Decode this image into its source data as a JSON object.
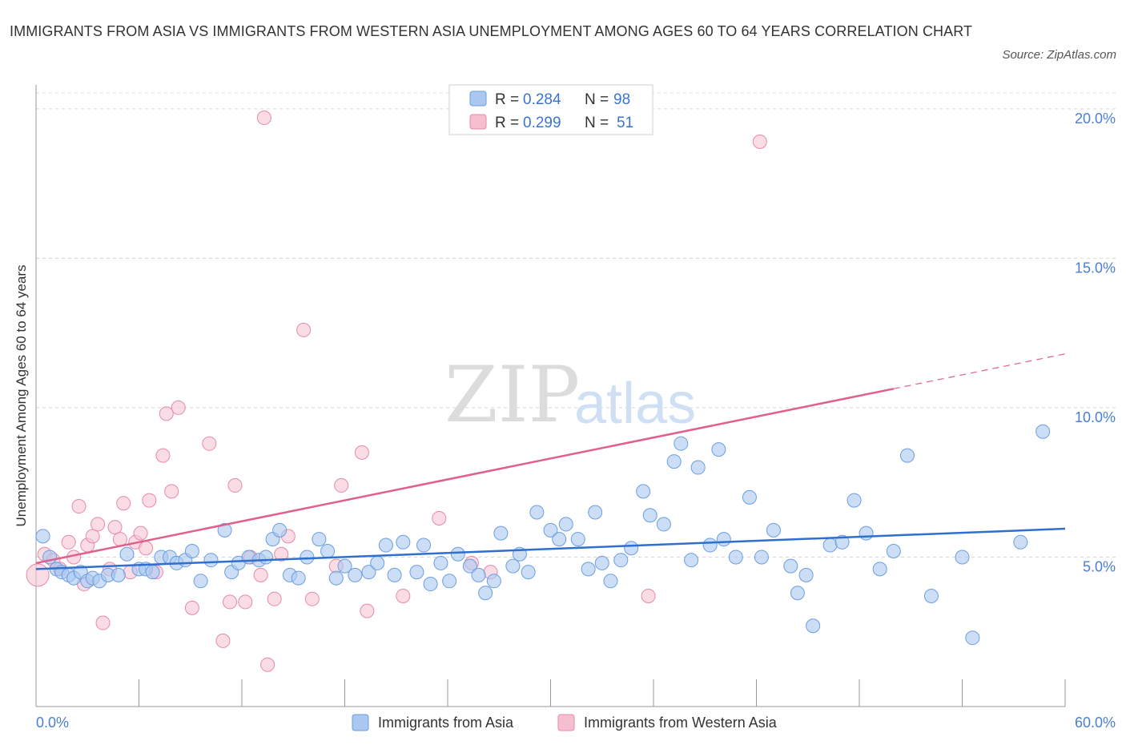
{
  "header": {
    "title": "IMMIGRANTS FROM ASIA VS IMMIGRANTS FROM WESTERN ASIA UNEMPLOYMENT AMONG AGES 60 TO 64 YEARS CORRELATION CHART",
    "source": "Source: ZipAtlas.com"
  },
  "watermark": {
    "zip": "ZIP",
    "atlas": "atlas"
  },
  "legend": {
    "rows": [
      {
        "r_label": "R = ",
        "r_value": "0.284",
        "n_label": "N = ",
        "n_value": "98",
        "color": "#aac8f0"
      },
      {
        "r_label": "R = ",
        "r_value": "0.299",
        "n_label": "N = ",
        "n_value": "51",
        "color": "#f6bfd0"
      }
    ]
  },
  "colors": {
    "asia_fill": "#a8c8f0",
    "asia_stroke": "#6b9ee0",
    "asia_line": "#2f6fce",
    "west_fill": "#f7c4d4",
    "west_stroke": "#e68aa8",
    "west_line": "#e0608c",
    "grid": "#d8d8d8"
  },
  "chart_data": {
    "type": "scatter",
    "title": "IMMIGRANTS FROM ASIA VS IMMIGRANTS FROM WESTERN ASIA UNEMPLOYMENT AMONG AGES 60 TO 64 YEARS CORRELATION CHART",
    "xlabel": "",
    "ylabel": "Unemployment Among Ages 60 to 64 years",
    "xlim": [
      0,
      60
    ],
    "ylim": [
      0,
      20.8
    ],
    "x_tick_labels": [
      "0.0%",
      "60.0%"
    ],
    "y_ticks": [
      5,
      10,
      15,
      20
    ],
    "y_tick_labels": [
      "5.0%",
      "10.0%",
      "15.0%",
      "20.0%"
    ],
    "grid": true,
    "legend_position": "top-center",
    "series": [
      {
        "name": "Immigrants from Asia",
        "R": 0.284,
        "N": 98,
        "trend": {
          "x": [
            0,
            60
          ],
          "y": [
            4.6,
            5.95
          ],
          "dashed_from": null
        },
        "points": [
          [
            0.4,
            5.7
          ],
          [
            0.8,
            5.0
          ],
          [
            1.2,
            4.6
          ],
          [
            1.5,
            4.5
          ],
          [
            1.9,
            4.4
          ],
          [
            2.2,
            4.3
          ],
          [
            2.6,
            4.5
          ],
          [
            3.0,
            4.2
          ],
          [
            3.3,
            4.3
          ],
          [
            3.7,
            4.2
          ],
          [
            4.2,
            4.4
          ],
          [
            4.8,
            4.4
          ],
          [
            5.3,
            5.1
          ],
          [
            6.0,
            4.6
          ],
          [
            6.4,
            4.6
          ],
          [
            6.8,
            4.5
          ],
          [
            7.3,
            5.0
          ],
          [
            7.8,
            5.0
          ],
          [
            8.2,
            4.8
          ],
          [
            8.7,
            4.9
          ],
          [
            9.1,
            5.2
          ],
          [
            9.6,
            4.2
          ],
          [
            10.2,
            4.9
          ],
          [
            11.0,
            5.9
          ],
          [
            11.4,
            4.5
          ],
          [
            11.8,
            4.8
          ],
          [
            12.4,
            5.0
          ],
          [
            13.0,
            4.9
          ],
          [
            13.4,
            5.0
          ],
          [
            13.8,
            5.6
          ],
          [
            14.2,
            5.9
          ],
          [
            14.8,
            4.4
          ],
          [
            15.3,
            4.3
          ],
          [
            15.8,
            5.0
          ],
          [
            16.5,
            5.6
          ],
          [
            17.0,
            5.2
          ],
          [
            17.5,
            4.3
          ],
          [
            18.0,
            4.7
          ],
          [
            18.6,
            4.4
          ],
          [
            19.4,
            4.5
          ],
          [
            19.9,
            4.8
          ],
          [
            20.4,
            5.4
          ],
          [
            20.9,
            4.4
          ],
          [
            21.4,
            5.5
          ],
          [
            22.2,
            4.5
          ],
          [
            22.6,
            5.4
          ],
          [
            23.0,
            4.1
          ],
          [
            23.6,
            4.8
          ],
          [
            24.1,
            4.2
          ],
          [
            24.6,
            5.1
          ],
          [
            25.3,
            4.7
          ],
          [
            25.8,
            4.4
          ],
          [
            26.2,
            3.8
          ],
          [
            26.7,
            4.2
          ],
          [
            27.1,
            5.8
          ],
          [
            27.8,
            4.7
          ],
          [
            28.2,
            5.1
          ],
          [
            28.7,
            4.5
          ],
          [
            29.2,
            6.5
          ],
          [
            30.0,
            5.9
          ],
          [
            30.5,
            5.6
          ],
          [
            30.9,
            6.1
          ],
          [
            31.6,
            5.6
          ],
          [
            32.2,
            4.6
          ],
          [
            32.6,
            6.5
          ],
          [
            33.0,
            4.8
          ],
          [
            33.5,
            4.2
          ],
          [
            34.1,
            4.9
          ],
          [
            34.7,
            5.3
          ],
          [
            35.4,
            7.2
          ],
          [
            35.8,
            6.4
          ],
          [
            36.6,
            6.1
          ],
          [
            37.2,
            8.2
          ],
          [
            37.6,
            8.8
          ],
          [
            38.2,
            4.9
          ],
          [
            38.6,
            8.0
          ],
          [
            39.3,
            5.4
          ],
          [
            39.8,
            8.6
          ],
          [
            40.1,
            5.6
          ],
          [
            40.8,
            5.0
          ],
          [
            41.6,
            7.0
          ],
          [
            42.3,
            5.0
          ],
          [
            43.0,
            5.9
          ],
          [
            44.0,
            4.7
          ],
          [
            44.4,
            3.8
          ],
          [
            44.9,
            4.4
          ],
          [
            45.3,
            2.7
          ],
          [
            46.3,
            5.4
          ],
          [
            47.0,
            5.5
          ],
          [
            47.7,
            6.9
          ],
          [
            48.4,
            5.8
          ],
          [
            49.2,
            4.6
          ],
          [
            50.0,
            5.2
          ],
          [
            50.8,
            8.4
          ],
          [
            52.2,
            3.7
          ],
          [
            54.0,
            5.0
          ],
          [
            54.6,
            2.3
          ],
          [
            57.4,
            5.5
          ],
          [
            58.7,
            9.2
          ]
        ]
      },
      {
        "name": "Immigrants from Western Asia",
        "R": 0.299,
        "N": 51,
        "trend": {
          "x": [
            0,
            60
          ],
          "y": [
            4.8,
            11.8
          ],
          "dashed_from": 50
        },
        "points": [
          [
            0.1,
            4.4
          ],
          [
            0.5,
            5.1
          ],
          [
            1.0,
            4.9
          ],
          [
            1.4,
            4.6
          ],
          [
            1.9,
            5.5
          ],
          [
            2.2,
            5.0
          ],
          [
            2.5,
            6.7
          ],
          [
            2.8,
            4.1
          ],
          [
            3.0,
            5.4
          ],
          [
            3.3,
            5.7
          ],
          [
            3.6,
            6.1
          ],
          [
            3.9,
            2.8
          ],
          [
            4.3,
            4.6
          ],
          [
            4.6,
            6.0
          ],
          [
            4.9,
            5.6
          ],
          [
            5.1,
            6.8
          ],
          [
            5.5,
            4.5
          ],
          [
            5.8,
            5.5
          ],
          [
            6.1,
            5.8
          ],
          [
            6.4,
            5.3
          ],
          [
            6.6,
            6.9
          ],
          [
            7.0,
            4.5
          ],
          [
            7.4,
            8.4
          ],
          [
            7.6,
            9.8
          ],
          [
            7.9,
            7.2
          ],
          [
            8.3,
            10.0
          ],
          [
            9.1,
            3.3
          ],
          [
            10.1,
            8.8
          ],
          [
            10.9,
            2.2
          ],
          [
            11.3,
            3.5
          ],
          [
            11.6,
            7.4
          ],
          [
            12.2,
            3.5
          ],
          [
            12.5,
            5.0
          ],
          [
            13.1,
            4.4
          ],
          [
            13.3,
            19.7
          ],
          [
            13.5,
            1.4
          ],
          [
            13.9,
            3.6
          ],
          [
            14.3,
            5.1
          ],
          [
            14.7,
            5.7
          ],
          [
            15.6,
            12.6
          ],
          [
            16.1,
            3.6
          ],
          [
            17.5,
            4.7
          ],
          [
            17.8,
            7.4
          ],
          [
            19.0,
            8.5
          ],
          [
            19.3,
            3.2
          ],
          [
            21.4,
            3.7
          ],
          [
            23.5,
            6.3
          ],
          [
            25.4,
            4.8
          ],
          [
            26.5,
            4.5
          ],
          [
            35.7,
            3.7
          ],
          [
            42.2,
            18.9
          ]
        ]
      }
    ]
  },
  "bottom_legend": {
    "items": [
      {
        "label": "Immigrants from Asia"
      },
      {
        "label": "Immigrants from Western Asia"
      }
    ]
  }
}
